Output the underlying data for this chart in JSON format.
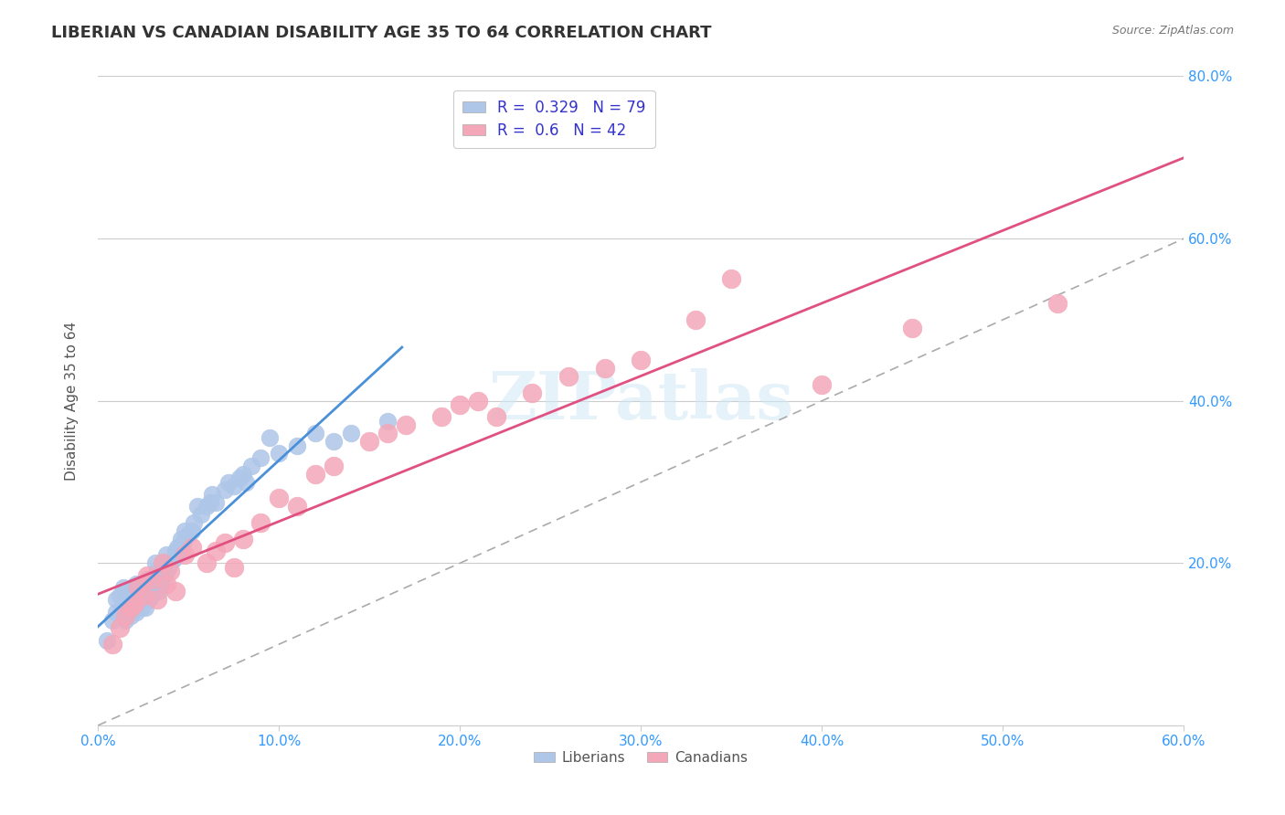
{
  "title": "LIBERIAN VS CANADIAN DISABILITY AGE 35 TO 64 CORRELATION CHART",
  "source": "Source: ZipAtlas.com",
  "xlabel": "",
  "ylabel": "Disability Age 35 to 64",
  "xlim": [
    0.0,
    0.6
  ],
  "ylim": [
    0.0,
    0.8
  ],
  "xticks": [
    0.0,
    0.1,
    0.2,
    0.3,
    0.4,
    0.5,
    0.6
  ],
  "yticks": [
    0.0,
    0.2,
    0.4,
    0.6,
    0.8
  ],
  "xtick_labels": [
    "0.0%",
    "10.0%",
    "20.0%",
    "30.0%",
    "40.0%",
    "50.0%",
    "60.0%"
  ],
  "ytick_labels": [
    "",
    "20.0%",
    "40.0%",
    "60.0%",
    "80.0%"
  ],
  "liberian_color": "#aec6e8",
  "canadian_color": "#f4a7b9",
  "liberian_R": 0.329,
  "liberian_N": 79,
  "canadian_R": 0.6,
  "canadian_N": 42,
  "liberian_line_color": "#4a90d9",
  "canadian_line_color": "#e05080",
  "dashed_line_color": "#aaaaaa",
  "watermark": "ZIPatlas",
  "liberian_x": [
    0.005,
    0.008,
    0.01,
    0.01,
    0.012,
    0.013,
    0.014,
    0.015,
    0.015,
    0.016,
    0.017,
    0.018,
    0.018,
    0.019,
    0.02,
    0.02,
    0.021,
    0.021,
    0.022,
    0.022,
    0.023,
    0.023,
    0.024,
    0.024,
    0.025,
    0.025,
    0.026,
    0.026,
    0.027,
    0.027,
    0.028,
    0.028,
    0.029,
    0.03,
    0.03,
    0.031,
    0.032,
    0.033,
    0.033,
    0.034,
    0.035,
    0.036,
    0.037,
    0.037,
    0.038,
    0.038,
    0.039,
    0.04,
    0.042,
    0.043,
    0.044,
    0.045,
    0.046,
    0.047,
    0.048,
    0.05,
    0.052,
    0.053,
    0.055,
    0.057,
    0.06,
    0.062,
    0.063,
    0.065,
    0.07,
    0.072,
    0.075,
    0.078,
    0.08,
    0.082,
    0.085,
    0.09,
    0.095,
    0.1,
    0.11,
    0.12,
    0.13,
    0.14,
    0.16
  ],
  "liberian_y": [
    0.105,
    0.13,
    0.155,
    0.14,
    0.16,
    0.145,
    0.17,
    0.13,
    0.165,
    0.145,
    0.155,
    0.135,
    0.165,
    0.17,
    0.15,
    0.16,
    0.14,
    0.175,
    0.16,
    0.17,
    0.165,
    0.155,
    0.145,
    0.175,
    0.155,
    0.16,
    0.145,
    0.17,
    0.18,
    0.165,
    0.155,
    0.175,
    0.16,
    0.165,
    0.18,
    0.17,
    0.2,
    0.185,
    0.19,
    0.165,
    0.175,
    0.195,
    0.2,
    0.185,
    0.19,
    0.21,
    0.195,
    0.2,
    0.205,
    0.215,
    0.22,
    0.215,
    0.23,
    0.225,
    0.24,
    0.235,
    0.24,
    0.25,
    0.27,
    0.26,
    0.27,
    0.275,
    0.285,
    0.275,
    0.29,
    0.3,
    0.295,
    0.305,
    0.31,
    0.3,
    0.32,
    0.33,
    0.355,
    0.335,
    0.345,
    0.36,
    0.35,
    0.36,
    0.375
  ],
  "canadian_x": [
    0.008,
    0.012,
    0.015,
    0.018,
    0.02,
    0.022,
    0.025,
    0.027,
    0.03,
    0.033,
    0.036,
    0.038,
    0.04,
    0.043,
    0.048,
    0.052,
    0.06,
    0.065,
    0.07,
    0.075,
    0.08,
    0.09,
    0.1,
    0.11,
    0.12,
    0.13,
    0.15,
    0.16,
    0.17,
    0.19,
    0.2,
    0.21,
    0.22,
    0.24,
    0.26,
    0.28,
    0.3,
    0.33,
    0.35,
    0.4,
    0.45,
    0.53
  ],
  "canadian_y": [
    0.1,
    0.12,
    0.135,
    0.145,
    0.15,
    0.17,
    0.16,
    0.185,
    0.18,
    0.155,
    0.2,
    0.175,
    0.19,
    0.165,
    0.21,
    0.22,
    0.2,
    0.215,
    0.225,
    0.195,
    0.23,
    0.25,
    0.28,
    0.27,
    0.31,
    0.32,
    0.35,
    0.36,
    0.37,
    0.38,
    0.395,
    0.4,
    0.38,
    0.41,
    0.43,
    0.44,
    0.45,
    0.5,
    0.55,
    0.42,
    0.49,
    0.52
  ]
}
